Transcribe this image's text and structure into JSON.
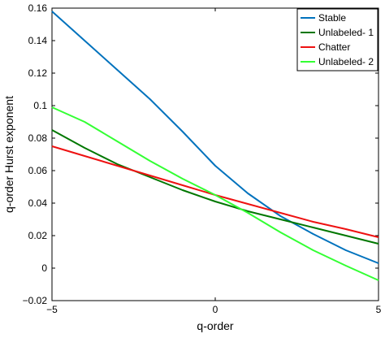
{
  "chart_data": {
    "type": "line",
    "xlabel": "q-order",
    "ylabel": "q-order Hurst exponent",
    "xlim": [
      -5,
      5
    ],
    "ylim": [
      -0.02,
      0.16
    ],
    "xticks": [
      -5,
      0,
      5
    ],
    "yticks": [
      -0.02,
      0,
      0.02,
      0.04,
      0.06,
      0.08,
      0.1,
      0.12,
      0.14,
      0.16
    ],
    "grid": false,
    "legend_position": "top-right",
    "x": [
      -5,
      -4,
      -3,
      -2,
      -1,
      0,
      1,
      2,
      3,
      4,
      5
    ],
    "series": [
      {
        "name": "Stable",
        "color": "#0072BD",
        "values": [
          0.158,
          0.14,
          0.122,
          0.104,
          0.084,
          0.063,
          0.046,
          0.032,
          0.021,
          0.011,
          0.003
        ]
      },
      {
        "name": "Unlabeled- 1",
        "color": "#007700",
        "values": [
          0.085,
          0.074,
          0.064,
          0.056,
          0.048,
          0.041,
          0.035,
          0.03,
          0.025,
          0.02,
          0.015
        ]
      },
      {
        "name": "Chatter",
        "color": "#EE1111",
        "values": [
          0.075,
          0.069,
          0.063,
          0.057,
          0.051,
          0.045,
          0.0395,
          0.034,
          0.0285,
          0.024,
          0.019
        ]
      },
      {
        "name": "Unlabeled- 2",
        "color": "#33FF33",
        "values": [
          0.099,
          0.09,
          0.078,
          0.066,
          0.055,
          0.045,
          0.034,
          0.022,
          0.011,
          0.0015,
          -0.0075
        ]
      }
    ]
  }
}
